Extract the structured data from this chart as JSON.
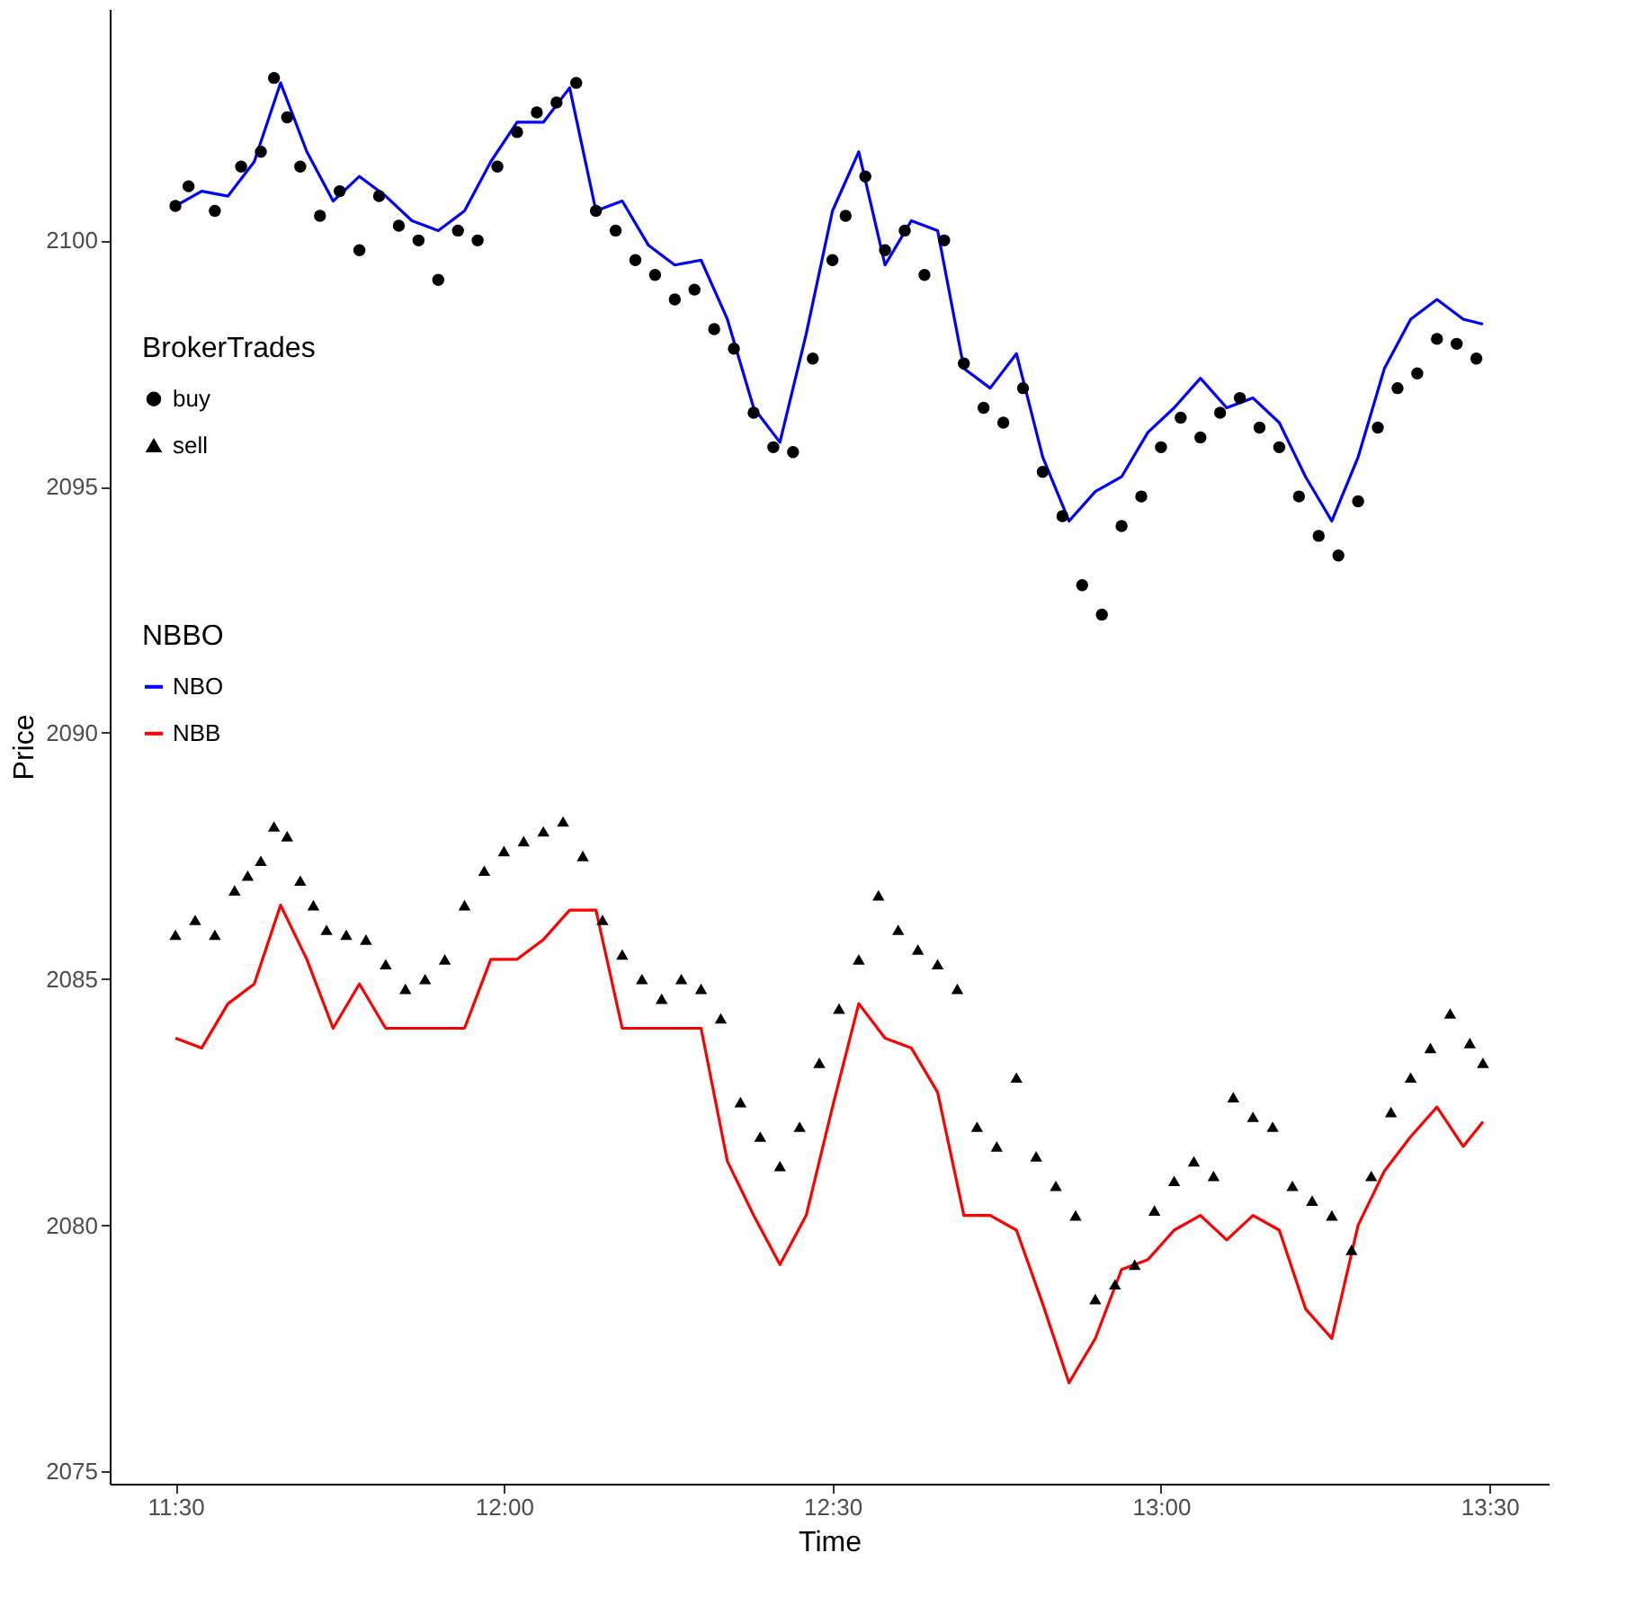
{
  "chart_data": {
    "type": "line",
    "xlabel": "Time",
    "ylabel": "Price",
    "legend_title": [
      "BrokerTrades",
      "NBBO"
    ],
    "legend": "left",
    "grid": false,
    "line_style": "solid",
    "xlim": [
      11.4,
      13.59
    ],
    "ylim": [
      2074.75,
      2104.7
    ],
    "xticks": [
      {
        "value": 11.5,
        "label": "11:30"
      },
      {
        "value": 12.0,
        "label": "12:00"
      },
      {
        "value": 12.5,
        "label": "12:30"
      },
      {
        "value": 13.0,
        "label": "13:00"
      },
      {
        "value": 13.5,
        "label": "13:30"
      }
    ],
    "yticks": [
      2075,
      2080,
      2085,
      2090,
      2095,
      2100
    ],
    "series": [
      {
        "name": "buy",
        "type": "scatter",
        "marker": "circle",
        "color": "#000000",
        "x": [
          11.5,
          11.52,
          11.56,
          11.6,
          11.63,
          11.65,
          11.67,
          11.69,
          11.72,
          11.75,
          11.78,
          11.81,
          11.84,
          11.87,
          11.9,
          11.93,
          11.96,
          11.99,
          12.02,
          12.05,
          12.08,
          12.11,
          12.14,
          12.17,
          12.2,
          12.23,
          12.26,
          12.29,
          12.32,
          12.35,
          12.38,
          12.41,
          12.44,
          12.47,
          12.5,
          12.52,
          12.55,
          12.58,
          12.61,
          12.64,
          12.67,
          12.7,
          12.73,
          12.76,
          12.79,
          12.82,
          12.85,
          12.88,
          12.91,
          12.94,
          12.97,
          13.0,
          13.03,
          13.06,
          13.09,
          13.12,
          13.15,
          13.18,
          13.21,
          13.24,
          13.27,
          13.3,
          13.33,
          13.36,
          13.39,
          13.42,
          13.45,
          13.48
        ],
        "values": [
          2100.7,
          2101.1,
          2100.6,
          2101.5,
          2101.8,
          2103.3,
          2102.5,
          2101.5,
          2100.5,
          2101.0,
          2099.8,
          2100.9,
          2100.3,
          2100.0,
          2099.2,
          2100.2,
          2100.0,
          2101.5,
          2102.2,
          2102.6,
          2102.8,
          2103.2,
          2100.6,
          2100.2,
          2099.6,
          2099.3,
          2098.8,
          2099.0,
          2098.2,
          2097.8,
          2096.5,
          2095.8,
          2095.7,
          2097.6,
          2099.6,
          2100.5,
          2101.3,
          2099.8,
          2100.2,
          2099.3,
          2100.0,
          2097.5,
          2096.6,
          2096.3,
          2097.0,
          2095.3,
          2094.4,
          2093.0,
          2092.4,
          2094.2,
          2094.8,
          2095.8,
          2096.4,
          2096.0,
          2096.5,
          2096.8,
          2096.2,
          2095.8,
          2094.8,
          2094.0,
          2093.6,
          2094.7,
          2096.2,
          2097.0,
          2097.3,
          2098.0,
          2097.9,
          2097.6
        ]
      },
      {
        "name": "sell",
        "type": "scatter",
        "marker": "triangle",
        "color": "#000000",
        "x": [
          11.5,
          11.53,
          11.56,
          11.59,
          11.61,
          11.63,
          11.65,
          11.67,
          11.69,
          11.71,
          11.73,
          11.76,
          11.79,
          11.82,
          11.85,
          11.88,
          11.91,
          11.94,
          11.97,
          12.0,
          12.03,
          12.06,
          12.09,
          12.12,
          12.15,
          12.18,
          12.21,
          12.24,
          12.27,
          12.3,
          12.33,
          12.36,
          12.39,
          12.42,
          12.45,
          12.48,
          12.51,
          12.54,
          12.57,
          12.6,
          12.63,
          12.66,
          12.69,
          12.72,
          12.75,
          12.78,
          12.81,
          12.84,
          12.87,
          12.9,
          12.93,
          12.96,
          12.99,
          13.02,
          13.05,
          13.08,
          13.11,
          13.14,
          13.17,
          13.2,
          13.23,
          13.26,
          13.29,
          13.32,
          13.35,
          13.38,
          13.41,
          13.44,
          13.47,
          13.49
        ],
        "values": [
          2085.9,
          2086.2,
          2085.9,
          2086.8,
          2087.1,
          2087.4,
          2088.1,
          2087.9,
          2087.0,
          2086.5,
          2086.0,
          2085.9,
          2085.8,
          2085.3,
          2084.8,
          2085.0,
          2085.4,
          2086.5,
          2087.2,
          2087.6,
          2087.8,
          2088.0,
          2088.2,
          2087.5,
          2086.2,
          2085.5,
          2085.0,
          2084.6,
          2085.0,
          2084.8,
          2084.2,
          2082.5,
          2081.8,
          2081.2,
          2082.0,
          2083.3,
          2084.4,
          2085.4,
          2086.7,
          2086.0,
          2085.6,
          2085.3,
          2084.8,
          2082.0,
          2081.6,
          2083.0,
          2081.4,
          2080.8,
          2080.2,
          2078.5,
          2078.8,
          2079.2,
          2080.3,
          2080.9,
          2081.3,
          2081.0,
          2082.6,
          2082.2,
          2082.0,
          2080.8,
          2080.5,
          2080.2,
          2079.5,
          2081.0,
          2082.3,
          2083.0,
          2083.6,
          2084.3,
          2083.7,
          2083.3
        ]
      },
      {
        "name": "NBO",
        "color": "#0000ff",
        "x": [
          11.5,
          11.54,
          11.58,
          11.62,
          11.66,
          11.7,
          11.74,
          11.78,
          11.82,
          11.86,
          11.9,
          11.94,
          11.98,
          12.02,
          12.06,
          12.1,
          12.14,
          12.18,
          12.22,
          12.26,
          12.3,
          12.34,
          12.38,
          12.42,
          12.46,
          12.5,
          12.54,
          12.58,
          12.62,
          12.66,
          12.7,
          12.74,
          12.78,
          12.82,
          12.86,
          12.9,
          12.94,
          12.98,
          13.02,
          13.06,
          13.1,
          13.14,
          13.18,
          13.22,
          13.26,
          13.3,
          13.34,
          13.38,
          13.42,
          13.46,
          13.49
        ],
        "values": [
          2100.7,
          2101.0,
          2100.9,
          2101.6,
          2103.2,
          2101.8,
          2100.8,
          2101.3,
          2100.9,
          2100.4,
          2100.2,
          2100.6,
          2101.6,
          2102.4,
          2102.4,
          2103.1,
          2100.6,
          2100.8,
          2099.9,
          2099.5,
          2099.6,
          2098.4,
          2096.6,
          2095.9,
          2098.1,
          2100.6,
          2101.8,
          2099.5,
          2100.4,
          2100.2,
          2097.4,
          2097.0,
          2097.7,
          2095.6,
          2094.3,
          2094.9,
          2095.2,
          2096.1,
          2096.6,
          2097.2,
          2096.6,
          2096.8,
          2096.3,
          2095.2,
          2094.3,
          2095.6,
          2097.4,
          2098.4,
          2098.8,
          2098.4,
          2098.3
        ]
      },
      {
        "name": "NBB",
        "color": "#ff0000",
        "x": [
          11.5,
          11.54,
          11.58,
          11.62,
          11.66,
          11.7,
          11.74,
          11.78,
          11.82,
          11.86,
          11.9,
          11.94,
          11.98,
          12.02,
          12.06,
          12.1,
          12.14,
          12.18,
          12.22,
          12.26,
          12.3,
          12.34,
          12.38,
          12.42,
          12.46,
          12.5,
          12.54,
          12.58,
          12.62,
          12.66,
          12.7,
          12.74,
          12.78,
          12.82,
          12.86,
          12.9,
          12.94,
          12.98,
          13.02,
          13.06,
          13.1,
          13.14,
          13.18,
          13.22,
          13.26,
          13.3,
          13.34,
          13.38,
          13.42,
          13.46,
          13.49
        ],
        "values": [
          2083.8,
          2083.6,
          2084.5,
          2084.9,
          2086.5,
          2085.4,
          2084.0,
          2084.9,
          2084.0,
          2084.0,
          2084.0,
          2084.0,
          2085.4,
          2085.4,
          2085.8,
          2086.4,
          2086.4,
          2084.0,
          2084.0,
          2084.0,
          2084.0,
          2081.3,
          2080.2,
          2079.2,
          2080.2,
          2082.4,
          2084.5,
          2083.8,
          2083.6,
          2082.7,
          2080.2,
          2080.2,
          2079.9,
          2078.4,
          2076.8,
          2077.7,
          2079.1,
          2079.3,
          2079.9,
          2080.2,
          2079.7,
          2080.2,
          2079.9,
          2078.3,
          2077.7,
          2080.0,
          2081.1,
          2081.8,
          2082.4,
          2081.6,
          2082.1
        ]
      }
    ]
  }
}
